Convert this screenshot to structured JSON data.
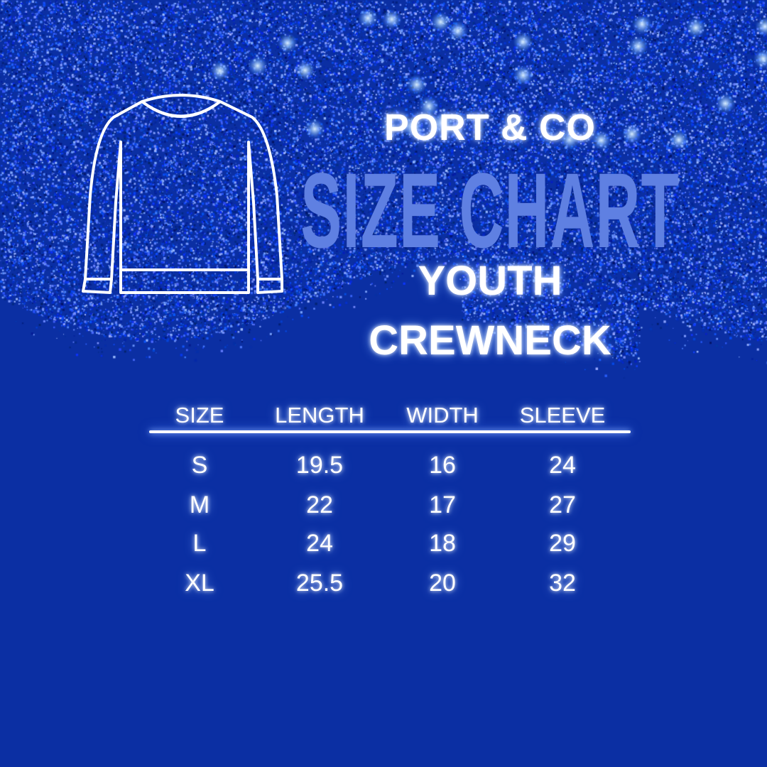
{
  "brand": "PORT & CO",
  "title": "SIZE CHART",
  "subtitle_1": "YOUTH",
  "subtitle_2": "CREWNECK",
  "icon": "sweater-outline-icon",
  "colors": {
    "background": "#0b2fa3",
    "title": "#5f80e2",
    "glitter": "#1e4fe0"
  },
  "table": {
    "headers": [
      "SIZE",
      "LENGTH",
      "WIDTH",
      "SLEEVE"
    ],
    "rows": [
      [
        "S",
        "19.5",
        "16",
        "24"
      ],
      [
        "M",
        "22",
        "17",
        "27"
      ],
      [
        "L",
        "24",
        "18",
        "29"
      ],
      [
        "XL",
        "25.5",
        "20",
        "32"
      ]
    ]
  }
}
